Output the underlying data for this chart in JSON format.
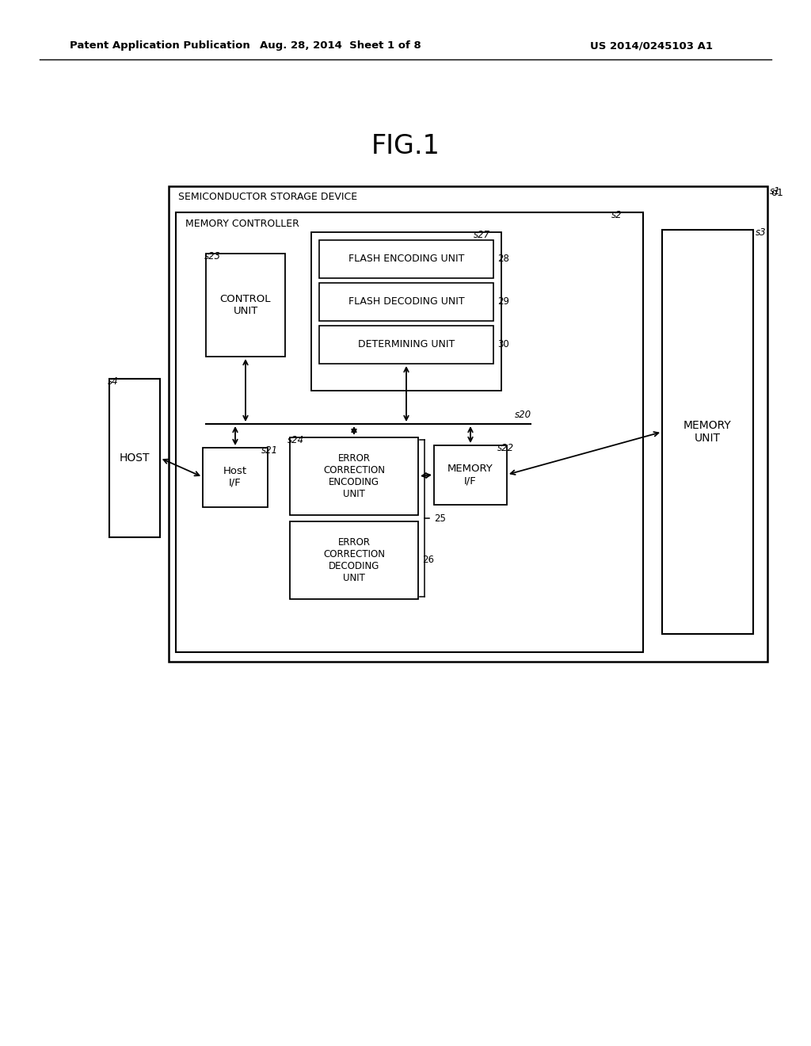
{
  "bg_color": "#ffffff",
  "header_left": "Patent Application Publication",
  "header_center": "Aug. 28, 2014  Sheet 1 of 8",
  "header_right": "US 2014/0245103 A1",
  "fig_title": "FIG.1",
  "outer_box_label": "SEMICONDUCTOR STORAGE DEVICE",
  "mc_box_label": "MEMORY CONTROLLER",
  "memory_unit_label": "MEMORY\nUNIT",
  "host_label": "HOST",
  "control_unit_label": "CONTROL\nUNIT",
  "host_if_label": "Host\nI/F",
  "flash_enc_label": "FLASH ENCODING UNIT",
  "flash_dec_label": "FLASH DECODING UNIT",
  "det_unit_label": "DETERMINING UNIT",
  "ecc_enc_label": "ERROR\nCORRECTION\nENCODING\nUNIT",
  "ecc_dec_label": "ERROR\nCORRECTION\nDECODING\nUNIT",
  "mem_if_label": "MEMORY\nI/F"
}
